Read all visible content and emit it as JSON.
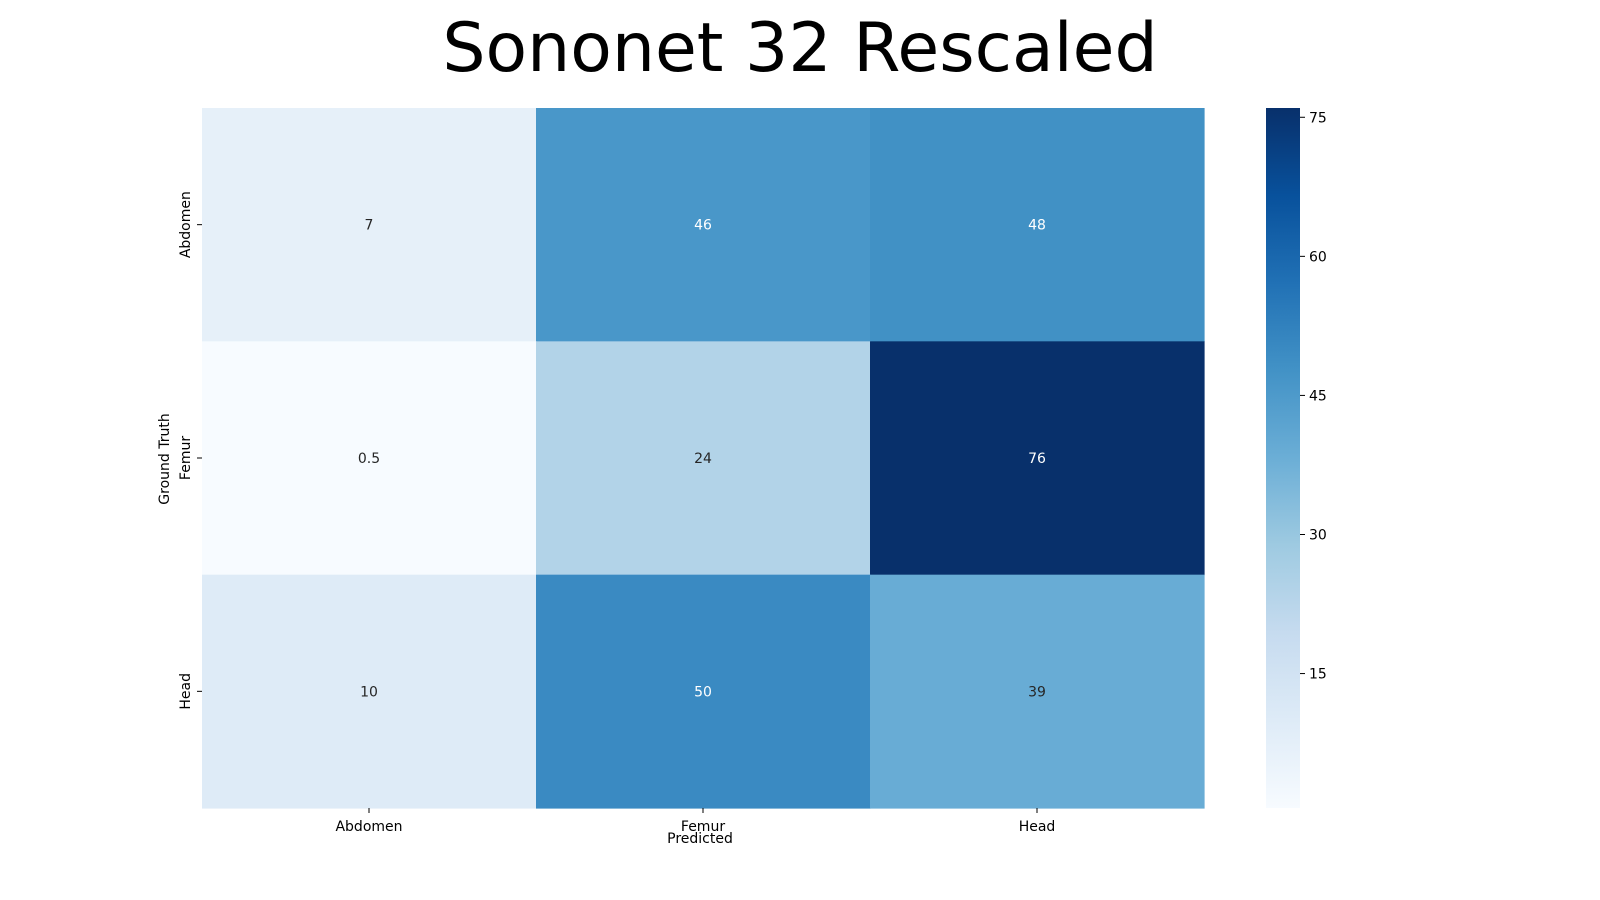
{
  "chart_data": {
    "type": "heatmap",
    "title": "Sononet 32 Rescaled",
    "xlabel": "Predicted",
    "ylabel": "Ground Truth",
    "x_categories": [
      "Abdomen",
      "Femur",
      "Head"
    ],
    "y_categories": [
      "Abdomen",
      "Femur",
      "Head"
    ],
    "values": [
      [
        7,
        46,
        48
      ],
      [
        0.5,
        24,
        76
      ],
      [
        10,
        50,
        39
      ]
    ],
    "cell_labels": [
      [
        "7",
        "46",
        "48"
      ],
      [
        "0.5",
        "24",
        "76"
      ],
      [
        "10",
        "50",
        "39"
      ]
    ],
    "colormap": "Blues",
    "color_range": [
      0.5,
      76
    ],
    "colorbar_ticks": [
      15,
      30,
      45,
      60,
      75
    ],
    "colorbar_tick_labels": [
      "15",
      "30",
      "45",
      "60",
      "75"
    ],
    "grid": false,
    "colorbar_placement": "right"
  }
}
